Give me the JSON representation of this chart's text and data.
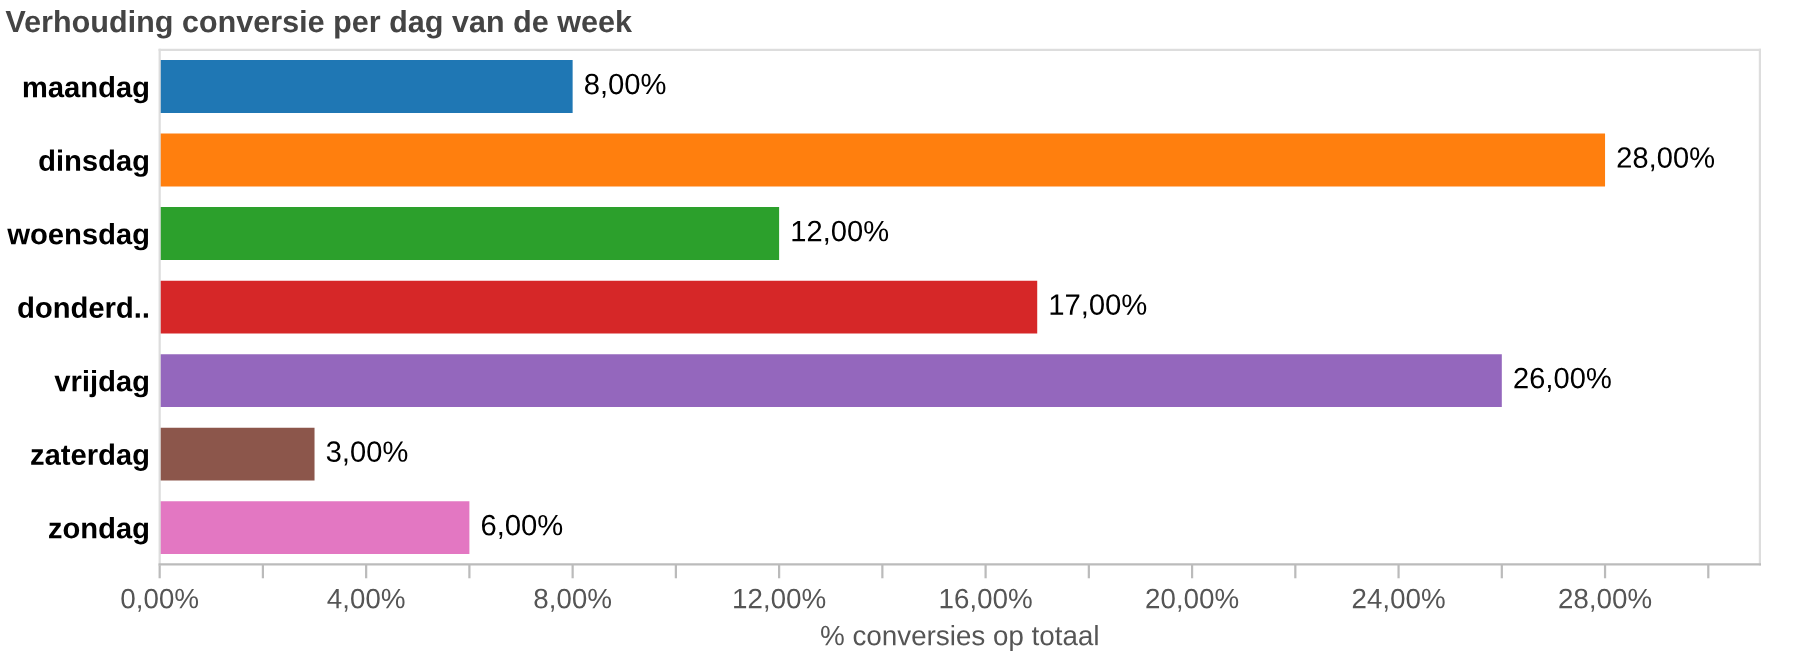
{
  "chart_data": {
    "type": "bar",
    "orientation": "horizontal",
    "title": "Verhouding conversie per dag van de week",
    "xlabel": "% conversies op totaal",
    "categories": [
      "maandag",
      "dinsdag",
      "woensdag",
      "donderd..",
      "vrijdag",
      "zaterdag",
      "zondag"
    ],
    "values": [
      8,
      28,
      12,
      17,
      26,
      3,
      6
    ],
    "colors": [
      "#1f77b4",
      "#ff7f0e",
      "#2ca02c",
      "#d62728",
      "#9467bd",
      "#8c564b",
      "#e377c2"
    ],
    "value_labels": [
      "8,00%",
      "28,00%",
      "12,00%",
      "17,00%",
      "26,00%",
      "3,00%",
      "6,00%"
    ],
    "xlim": [
      0,
      31
    ],
    "xticks": [
      {
        "value": 0,
        "label": "0,00%"
      },
      {
        "value": 2,
        "label": null
      },
      {
        "value": 4,
        "label": "4,00%"
      },
      {
        "value": 6,
        "label": null
      },
      {
        "value": 8,
        "label": "8,00%"
      },
      {
        "value": 10,
        "label": null
      },
      {
        "value": 12,
        "label": "12,00%"
      },
      {
        "value": 14,
        "label": null
      },
      {
        "value": 16,
        "label": "16,00%"
      },
      {
        "value": 18,
        "label": null
      },
      {
        "value": 20,
        "label": "20,00%"
      },
      {
        "value": 22,
        "label": null
      },
      {
        "value": 24,
        "label": "24,00%"
      },
      {
        "value": 26,
        "label": null
      },
      {
        "value": 28,
        "label": "28,00%"
      },
      {
        "value": 30,
        "label": null
      }
    ],
    "grid": false,
    "legend": false
  }
}
